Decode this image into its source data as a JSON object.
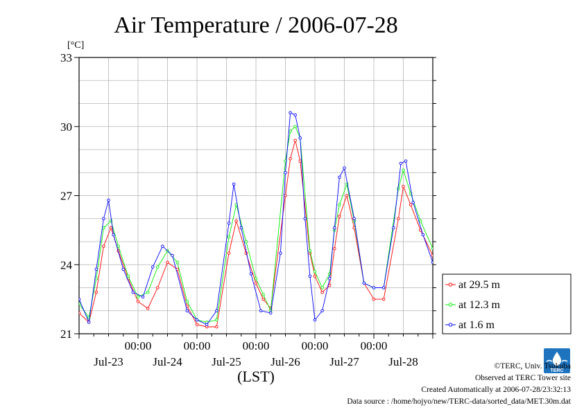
{
  "chart_data": {
    "type": "line",
    "title": "Air Temperature / 2006-07-28",
    "y_unit": "[°C]",
    "xlabel": "(LST)",
    "ylim": [
      21,
      33
    ],
    "yticks": [
      21,
      24,
      27,
      30,
      33
    ],
    "x_range_hours": [
      0,
      144
    ],
    "x_ticks": [
      {
        "hour": 24,
        "time": "00:00",
        "date": "Jul-23"
      },
      {
        "hour": 48,
        "time": "00:00",
        "date": "Jul-24"
      },
      {
        "hour": 72,
        "time": "00:00",
        "date": "Jul-25"
      },
      {
        "hour": 96,
        "time": "00:00",
        "date": "Jul-26"
      },
      {
        "hour": 120,
        "time": "00:00",
        "date": "Jul-27"
      },
      {
        "hour": 144,
        "time": null,
        "date": "Jul-28"
      }
    ],
    "grid": true,
    "legend_position": "right",
    "series": [
      {
        "name": "at 29.5 m",
        "color": "#ff0000",
        "points": [
          [
            0,
            21.9
          ],
          [
            4,
            21.5
          ],
          [
            7,
            22.8
          ],
          [
            10,
            24.8
          ],
          [
            13,
            25.6
          ],
          [
            16,
            24.6
          ],
          [
            20,
            23.4
          ],
          [
            24,
            22.4
          ],
          [
            28,
            22.1
          ],
          [
            32,
            23.0
          ],
          [
            36,
            24.1
          ],
          [
            40,
            23.8
          ],
          [
            44,
            22.2
          ],
          [
            48,
            21.4
          ],
          [
            52,
            21.3
          ],
          [
            56,
            21.3
          ],
          [
            61,
            24.5
          ],
          [
            64,
            25.9
          ],
          [
            68,
            24.5
          ],
          [
            72,
            23.2
          ],
          [
            75,
            22.5
          ],
          [
            78,
            22.1
          ],
          [
            84,
            27.0
          ],
          [
            86,
            28.6
          ],
          [
            88,
            29.4
          ],
          [
            90,
            28.5
          ],
          [
            94,
            24.5
          ],
          [
            96,
            23.5
          ],
          [
            99,
            22.8
          ],
          [
            102,
            23.1
          ],
          [
            104,
            24.7
          ],
          [
            106,
            26.1
          ],
          [
            109,
            27.0
          ],
          [
            112,
            25.6
          ],
          [
            116,
            23.2
          ],
          [
            120,
            22.5
          ],
          [
            124,
            22.5
          ],
          [
            130,
            26.0
          ],
          [
            132,
            27.4
          ],
          [
            135,
            26.6
          ],
          [
            139,
            25.5
          ],
          [
            144,
            24.4
          ]
        ]
      },
      {
        "name": "at 12.3 m",
        "color": "#00ee00",
        "points": [
          [
            0,
            22.3
          ],
          [
            4,
            21.7
          ],
          [
            7,
            23.4
          ],
          [
            10,
            25.6
          ],
          [
            13,
            25.9
          ],
          [
            16,
            24.8
          ],
          [
            20,
            23.5
          ],
          [
            24,
            22.6
          ],
          [
            28,
            22.8
          ],
          [
            32,
            23.9
          ],
          [
            36,
            24.6
          ],
          [
            40,
            24.1
          ],
          [
            44,
            22.4
          ],
          [
            48,
            21.6
          ],
          [
            52,
            21.5
          ],
          [
            56,
            21.6
          ],
          [
            61,
            25.2
          ],
          [
            64,
            26.6
          ],
          [
            68,
            25.0
          ],
          [
            72,
            23.4
          ],
          [
            75,
            22.7
          ],
          [
            78,
            22.0
          ],
          [
            84,
            28.5
          ],
          [
            86,
            29.8
          ],
          [
            88,
            30.0
          ],
          [
            90,
            29.5
          ],
          [
            94,
            24.6
          ],
          [
            96,
            23.7
          ],
          [
            99,
            23.0
          ],
          [
            102,
            23.6
          ],
          [
            104,
            25.5
          ],
          [
            106,
            26.6
          ],
          [
            109,
            27.5
          ],
          [
            112,
            25.9
          ],
          [
            116,
            23.2
          ],
          [
            120,
            23.0
          ],
          [
            124,
            23.0
          ],
          [
            130,
            27.3
          ],
          [
            132,
            28.1
          ],
          [
            135,
            27.1
          ],
          [
            139,
            25.9
          ],
          [
            144,
            24.7
          ]
        ]
      },
      {
        "name": "at 1.6 m",
        "color": "#0000ff",
        "points": [
          [
            0,
            22.5
          ],
          [
            4,
            21.5
          ],
          [
            7,
            23.8
          ],
          [
            10,
            26.0
          ],
          [
            12,
            26.8
          ],
          [
            14,
            25.3
          ],
          [
            18,
            23.8
          ],
          [
            22,
            22.8
          ],
          [
            26,
            22.6
          ],
          [
            30,
            23.9
          ],
          [
            34,
            24.8
          ],
          [
            38,
            24.4
          ],
          [
            44,
            22.0
          ],
          [
            48,
            21.6
          ],
          [
            52,
            21.4
          ],
          [
            56,
            22.0
          ],
          [
            61,
            25.8
          ],
          [
            63,
            27.5
          ],
          [
            66,
            25.6
          ],
          [
            70,
            23.6
          ],
          [
            74,
            22.0
          ],
          [
            78,
            21.9
          ],
          [
            82,
            24.5
          ],
          [
            84,
            28.0
          ],
          [
            86,
            30.6
          ],
          [
            88,
            30.5
          ],
          [
            90,
            29.5
          ],
          [
            92,
            26.0
          ],
          [
            94,
            23.5
          ],
          [
            96,
            21.6
          ],
          [
            99,
            22.0
          ],
          [
            102,
            23.4
          ],
          [
            104,
            25.6
          ],
          [
            106,
            27.8
          ],
          [
            108,
            28.2
          ],
          [
            112,
            26.0
          ],
          [
            116,
            23.2
          ],
          [
            120,
            23.0
          ],
          [
            124,
            23.0
          ],
          [
            128,
            25.6
          ],
          [
            131,
            28.4
          ],
          [
            133,
            28.5
          ],
          [
            136,
            26.7
          ],
          [
            140,
            25.3
          ],
          [
            144,
            24.1
          ]
        ]
      }
    ]
  },
  "credits": {
    "copyright": "©TERC, Univ. Tsukuba",
    "site": "Observed at TERC Tower site",
    "created": "Created Automatically at 2006-07-28/23:32:13",
    "source": "Data source : /home/hojyo/new/TERC-data/sorted_data/MET.30m.dat"
  }
}
